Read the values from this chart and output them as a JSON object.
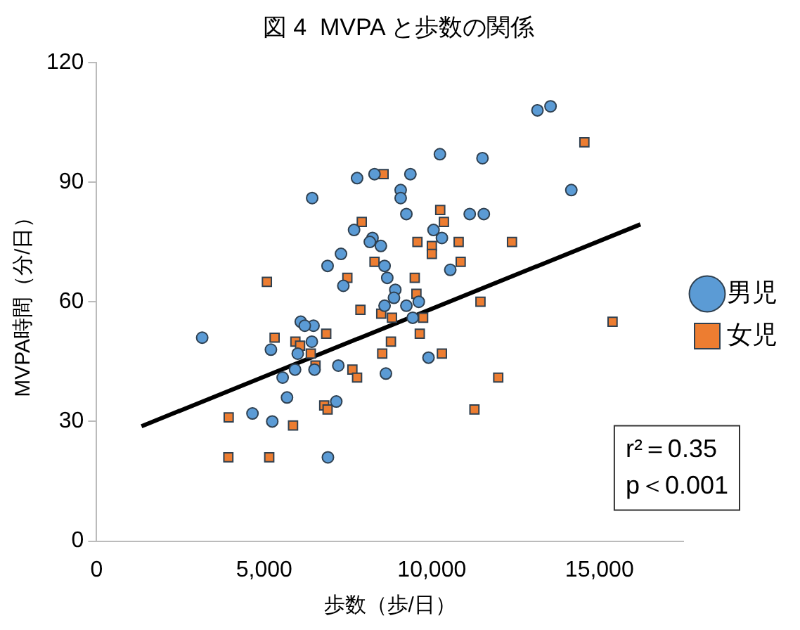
{
  "chart_data": {
    "type": "scatter",
    "title": "図 4  MVPA と歩数の関係",
    "xlabel": "歩数（歩/日）",
    "ylabel": "MVPA時間（分/日）",
    "xlim": [
      0,
      17500
    ],
    "xticks": [
      0,
      {
        "value": 5000,
        "label": "5,000"
      },
      {
        "value": 10000,
        "label": "10,000"
      },
      {
        "value": 15000,
        "label": "15,000"
      }
    ],
    "ylim": [
      0,
      120
    ],
    "yticks": [
      0,
      30,
      60,
      90,
      120
    ],
    "grid": false,
    "legend": "right",
    "annotations": [
      "r²＝0.35",
      "p＜0.001"
    ],
    "series": [
      {
        "name": "男児",
        "color": "#5b9bd5",
        "marker": "circle",
        "x": [
          3150,
          7770,
          6430,
          7680,
          7290,
          6890,
          7360,
          6090,
          6470,
          6210,
          6420,
          5200,
          6000,
          5920,
          6500,
          7210,
          5550,
          5680,
          7150,
          4650,
          5240,
          6900,
          13150,
          13540,
          10240,
          11510,
          8290,
          9360,
          9070,
          9070,
          9240,
          14160,
          11130,
          11550,
          10050,
          10300,
          8230,
          8150,
          8480,
          8590,
          10550,
          8670,
          8910,
          8870,
          8590,
          9240,
          9610,
          9430,
          9900,
          8630
        ],
        "values": [
          51,
          91,
          86,
          78,
          72,
          69,
          64,
          55,
          54,
          54,
          50,
          48,
          47,
          43,
          43,
          44,
          41,
          36,
          35,
          32,
          30,
          21,
          108,
          109,
          97,
          96,
          92,
          92,
          88,
          86,
          82,
          88,
          82,
          82,
          78,
          76,
          76,
          75,
          74,
          69,
          68,
          66,
          63,
          61,
          59,
          59,
          60,
          56,
          46,
          42
        ]
      },
      {
        "name": "女児",
        "color": "#ed7d31",
        "marker": "square",
        "x": [
          7910,
          5080,
          7480,
          7870,
          5310,
          5930,
          6070,
          6850,
          6390,
          6530,
          7630,
          7770,
          6790,
          6890,
          3940,
          5860,
          3930,
          5150,
          8560,
          14550,
          10250,
          10360,
          9570,
          10000,
          10000,
          10800,
          12390,
          10860,
          8290,
          9490,
          9540,
          8490,
          8810,
          9740,
          11450,
          9640,
          8780,
          8520,
          10300,
          15390,
          11980,
          11270
        ],
        "values": [
          80,
          65,
          66,
          58,
          51,
          50,
          49,
          52,
          47,
          44,
          43,
          41,
          34,
          33,
          31,
          29,
          21,
          21,
          92,
          100,
          83,
          80,
          75,
          74,
          72,
          75,
          75,
          70,
          70,
          66,
          62,
          57,
          56,
          56,
          60,
          52,
          50,
          47,
          47,
          55,
          41,
          33
        ]
      },
      {
        "type": "line",
        "color": "#000000",
        "marker": "none",
        "line_style": "solid",
        "x": [
          1340,
          16220
        ],
        "values": [
          28.8,
          79.4
        ]
      }
    ]
  }
}
